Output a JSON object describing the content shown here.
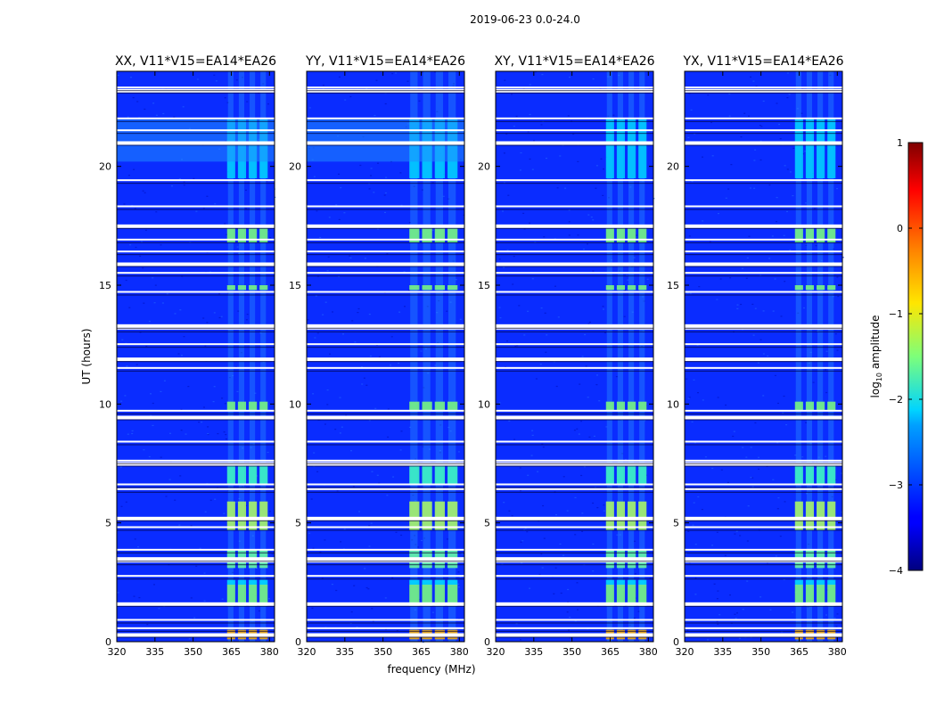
{
  "figure_title": "2019-06-23 0.0-24.0",
  "chart_data": {
    "type": "heatmap",
    "title": "2019-06-23 0.0-24.0",
    "xlabel": "frequency (MHz)",
    "ylabel": "UT (hours)",
    "xlim": [
      320,
      382
    ],
    "ylim": [
      0,
      24
    ],
    "x_ticks": [
      320,
      335,
      350,
      365,
      380
    ],
    "y_ticks": [
      0,
      5,
      10,
      15,
      20
    ],
    "panels": [
      {
        "title": "XX, V11*V15=EA14*EA26",
        "polarization": "XX",
        "strong_band_mhz": [
          363,
          380
        ]
      },
      {
        "title": "YY, V11*V15=EA14*EA26",
        "polarization": "YY",
        "strong_band_mhz": [
          360,
          380
        ]
      },
      {
        "title": "XY, V11*V15=EA14*EA26",
        "polarization": "XY",
        "strong_band_mhz": [
          363,
          380
        ]
      },
      {
        "title": "YX, V11*V15=EA14*EA26",
        "polarization": "YX",
        "strong_band_mhz": [
          363,
          380
        ]
      }
    ],
    "colorbar": {
      "label": "log₁₀ amplitude",
      "label_prefix": "log",
      "label_sub": "10",
      "label_suffix": " amplitude",
      "range": [
        -4,
        1
      ],
      "ticks": [
        1,
        0,
        -1,
        -2,
        -3,
        -4
      ],
      "tick_labels": [
        "1",
        "0",
        "−1",
        "−2",
        "−3",
        "−4"
      ],
      "colormap": "jet"
    },
    "blank_rows_ut_hours": [
      0.3,
      0.55,
      0.9,
      1.6,
      2.75,
      3.35,
      3.5,
      3.85,
      4.8,
      5.2,
      6.4,
      6.6,
      7.5,
      7.6,
      8.4,
      9.45,
      9.7,
      11.5,
      11.9,
      12.5,
      13.15,
      13.3,
      14.7,
      15.5,
      15.9,
      16.4,
      16.9,
      17.5,
      18.3,
      19.4,
      21.0,
      21.5,
      22.0,
      23.2,
      23.3
    ]
  }
}
